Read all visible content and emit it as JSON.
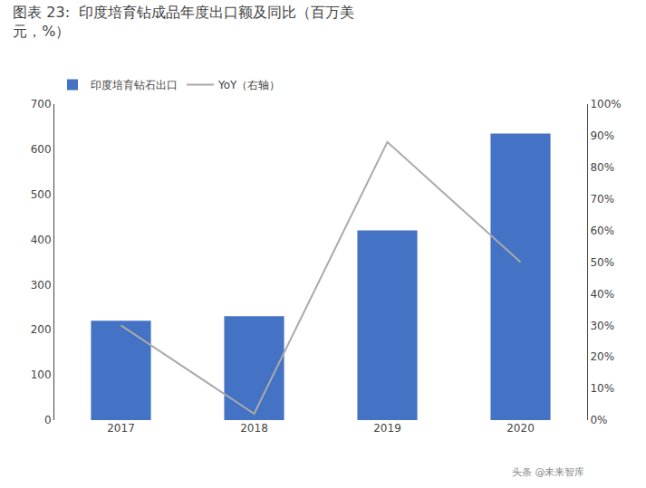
{
  "chart_data": {
    "type": "bar",
    "title": "图表 23:  印度培育钻成品年度出口额及同比（百万美\n元，%）",
    "categories": [
      "2017",
      "2018",
      "2019",
      "2020"
    ],
    "series": [
      {
        "name": "印度培育钻石出口",
        "type": "bar",
        "color": "#4472C4",
        "values": [
          220,
          230,
          420,
          635
        ]
      },
      {
        "name": "YoY（右轴）",
        "type": "line",
        "axis": "y2",
        "color": "#AAAAAA",
        "values": [
          0.3,
          0.02,
          0.88,
          0.5
        ]
      }
    ],
    "ylim": [
      0,
      700
    ],
    "yticks": [
      0,
      100,
      200,
      300,
      400,
      500,
      600,
      700
    ],
    "y2lim": [
      0,
      1.0
    ],
    "y2ticks": [
      {
        "value": 0.0,
        "label": "0%"
      },
      {
        "value": 0.1,
        "label": "10%"
      },
      {
        "value": 0.2,
        "label": "20%"
      },
      {
        "value": 0.3,
        "label": "30%"
      },
      {
        "value": 0.4,
        "label": "40%"
      },
      {
        "value": 0.5,
        "label": "50%"
      },
      {
        "value": 0.6,
        "label": "60%"
      },
      {
        "value": 0.7,
        "label": "70%"
      },
      {
        "value": 0.8,
        "label": "80%"
      },
      {
        "value": 0.9,
        "label": "90%"
      },
      {
        "value": 1.0,
        "label": "100%"
      }
    ],
    "grid": false,
    "legend": "upper left",
    "annotations": [
      {
        "text": "头条 @未来智库"
      }
    ]
  }
}
